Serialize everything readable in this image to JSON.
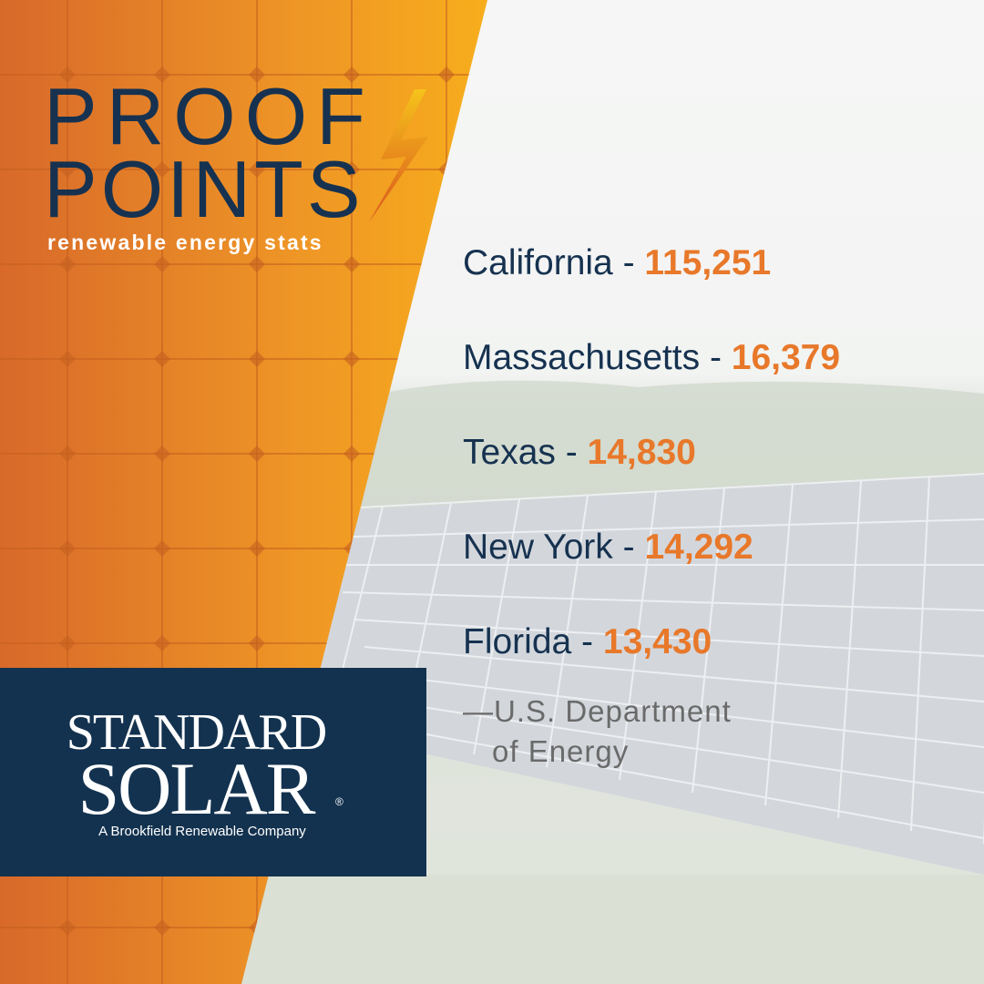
{
  "header": {
    "title_lines": [
      "PROOF",
      "POINTS"
    ],
    "subtitle": "renewable energy stats"
  },
  "stats": [
    {
      "label": "California -",
      "value": "115,251"
    },
    {
      "label": "Massachusetts -",
      "value": "16,379"
    },
    {
      "label": "Texas -",
      "value": "14,830"
    },
    {
      "label": "New York -",
      "value": "14,292"
    },
    {
      "label": "Florida -",
      "value": "13,430"
    }
  ],
  "source": [
    "—U.S. Department",
    "of Energy"
  ],
  "logo": {
    "line1": "STANDARD",
    "line2": "SOLAR",
    "mark": "®",
    "tagline": "A Brookfield Renewable Company"
  }
}
